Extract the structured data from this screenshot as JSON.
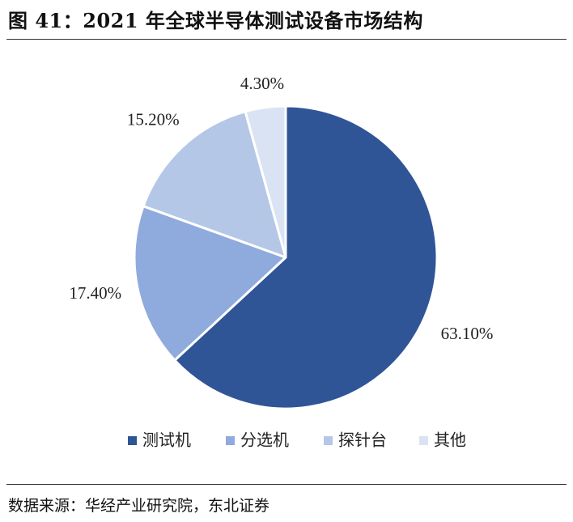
{
  "figure": {
    "title": "图 41：2021 年全球半导体测试设备市场结构",
    "source": "数据来源：华经产业研究院，东北证券"
  },
  "chart_data": {
    "type": "pie",
    "title": "",
    "legend_position": "bottom",
    "start_angle_deg": 0,
    "direction": "clockwise",
    "slices": [
      {
        "name": "测试机",
        "value": 63.1,
        "label": "63.10%",
        "color": "#2f5597"
      },
      {
        "name": "分选机",
        "value": 17.4,
        "label": "17.40%",
        "color": "#8faadc"
      },
      {
        "name": "探针台",
        "value": 15.2,
        "label": "15.20%",
        "color": "#b4c7e7"
      },
      {
        "name": "其他",
        "value": 4.3,
        "label": "4.30%",
        "color": "#dae3f3"
      }
    ]
  }
}
